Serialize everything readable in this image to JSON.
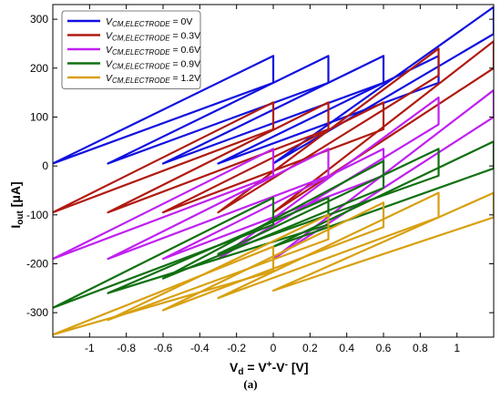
{
  "chart_data": {
    "type": "line",
    "xlabel_main": "V",
    "xlabel_sub": "d",
    "xlabel_eq": " = V",
    "xlabel_sup1": "+",
    "xlabel_mid": "-V",
    "xlabel_sup2": "-",
    "xlabel_unit": "   [V]",
    "ylabel_main": "I",
    "ylabel_sub": "out",
    "ylabel_unit": "  [μA]",
    "xlim": [
      -1.2,
      1.2
    ],
    "ylim": [
      -350,
      330
    ],
    "x_ticks": [
      -1,
      -0.8,
      -0.6,
      -0.4,
      -0.2,
      0,
      0.2,
      0.4,
      0.6,
      0.8,
      1
    ],
    "x_tick_labels": [
      "-1",
      "-0.8",
      "-0.6",
      "-0.4",
      "-0.2",
      "0",
      "0.2",
      "0.4",
      "0.6",
      "0.8",
      "1"
    ],
    "y_ticks": [
      -300,
      -200,
      -100,
      0,
      100,
      200,
      300
    ],
    "y_tick_labels": [
      "-300",
      "-200",
      "-100",
      "0",
      "100",
      "200",
      "300"
    ],
    "grid": false,
    "legend_position": "top-left",
    "caption": "(a)",
    "series": [
      {
        "name_main": "V",
        "name_sub": "CM,ELECTRODE",
        "name_val": " = 0V",
        "color": "#1010e0",
        "loops": [
          {
            "x1": -1.2,
            "x2": 0.0,
            "y1": 5,
            "y2": 225,
            "y_low2": 170
          },
          {
            "x1": -0.9,
            "x2": 0.3,
            "y1": 5,
            "y2": 225,
            "y_low2": 170
          },
          {
            "x1": -0.6,
            "x2": 0.6,
            "y1": 5,
            "y2": 225,
            "y_low2": 170
          },
          {
            "x1": -0.3,
            "x2": 0.9,
            "y1": 5,
            "y2": 225,
            "y_low2": 170
          },
          {
            "x1": 0.0,
            "x2": 1.2,
            "y1": 5,
            "y2": 325,
            "y_low2": 270
          }
        ]
      },
      {
        "name_main": "V",
        "name_sub": "CM,ELECTRODE",
        "name_val": " = 0.3V",
        "color": "#b01a10",
        "loops": [
          {
            "x1": -1.2,
            "x2": 0.0,
            "y1": -95,
            "y2": 130,
            "y_low2": 75
          },
          {
            "x1": -0.9,
            "x2": 0.3,
            "y1": -95,
            "y2": 130,
            "y_low2": 75
          },
          {
            "x1": -0.6,
            "x2": 0.6,
            "y1": -95,
            "y2": 130,
            "y_low2": 75
          },
          {
            "x1": -0.3,
            "x2": 0.9,
            "y1": -95,
            "y2": 240,
            "y_low2": 185
          },
          {
            "x1": 0.0,
            "x2": 1.2,
            "y1": -95,
            "y2": 255,
            "y_low2": 200
          }
        ]
      },
      {
        "name_main": "V",
        "name_sub": "CM,ELECTRODE",
        "name_val": " = 0.6V",
        "color": "#c020f0",
        "loops": [
          {
            "x1": -1.2,
            "x2": 0.0,
            "y1": -190,
            "y2": 35,
            "y_low2": -20
          },
          {
            "x1": -0.9,
            "x2": 0.3,
            "y1": -190,
            "y2": 35,
            "y_low2": -20
          },
          {
            "x1": -0.6,
            "x2": 0.6,
            "y1": -190,
            "y2": 35,
            "y_low2": -20
          },
          {
            "x1": -0.3,
            "x2": 0.9,
            "y1": -190,
            "y2": 140,
            "y_low2": 85
          },
          {
            "x1": 0.0,
            "x2": 1.2,
            "y1": -190,
            "y2": 155,
            "y_low2": 100
          }
        ]
      },
      {
        "name_main": "V",
        "name_sub": "CM,ELECTRODE",
        "name_val": " = 0.9V",
        "color": "#107010",
        "loops": [
          {
            "x1": -1.2,
            "x2": 0.0,
            "y1": -290,
            "y2": -65,
            "y_low2": -120
          },
          {
            "x1": -0.9,
            "x2": 0.3,
            "y1": -260,
            "y2": -65,
            "y_low2": -120
          },
          {
            "x1": -0.6,
            "x2": 0.6,
            "y1": -230,
            "y2": 10,
            "y_low2": -45
          },
          {
            "x1": -0.3,
            "x2": 0.9,
            "y1": -180,
            "y2": 35,
            "y_low2": -20
          },
          {
            "x1": 0.0,
            "x2": 1.2,
            "y1": -165,
            "y2": 50,
            "y_low2": -5
          }
        ]
      },
      {
        "name_main": "V",
        "name_sub": "CM,ELECTRODE",
        "name_val": " = 1.2V",
        "color": "#d8a010",
        "loops": [
          {
            "x1": -1.2,
            "x2": 0.0,
            "y1": -345,
            "y2": -165,
            "y_low2": -215
          },
          {
            "x1": -0.9,
            "x2": 0.3,
            "y1": -315,
            "y2": -100,
            "y_low2": -150
          },
          {
            "x1": -0.6,
            "x2": 0.6,
            "y1": -295,
            "y2": -75,
            "y_low2": -125
          },
          {
            "x1": -0.3,
            "x2": 0.9,
            "y1": -270,
            "y2": -55,
            "y_low2": -105
          },
          {
            "x1": 0.0,
            "x2": 1.2,
            "y1": -255,
            "y2": -55,
            "y_low2": -105
          }
        ]
      }
    ]
  }
}
